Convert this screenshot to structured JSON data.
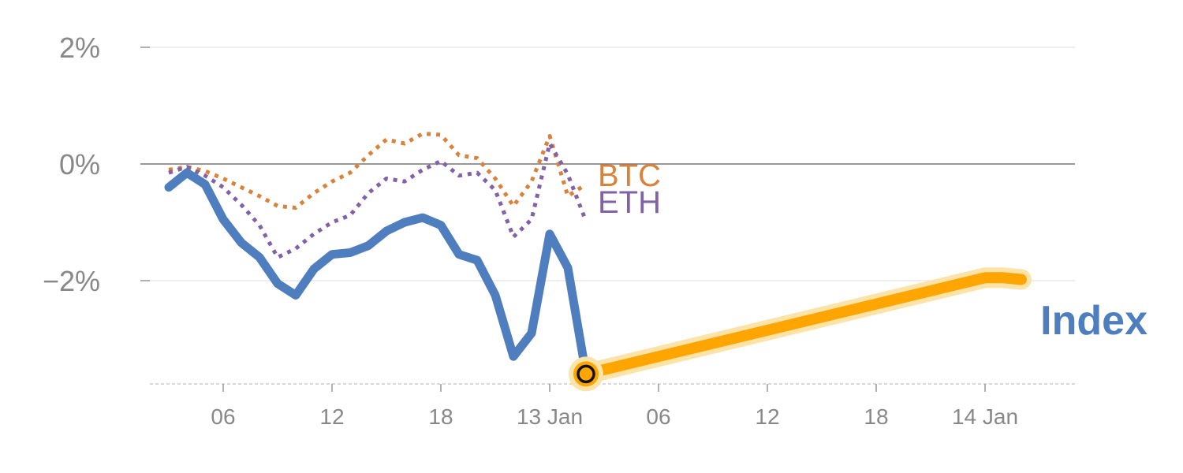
{
  "chart_data": {
    "type": "line",
    "title": "",
    "xlabel": "",
    "ylabel": "",
    "ylim": [
      -3.8,
      2.4
    ],
    "yticks": [
      {
        "value": 2,
        "label": "2%"
      },
      {
        "value": 0,
        "label": "0%"
      },
      {
        "value": -2,
        "label": "−2%"
      }
    ],
    "xticks": [
      {
        "h": 6,
        "label": "06"
      },
      {
        "h": 12,
        "label": "12"
      },
      {
        "h": 18,
        "label": "18"
      },
      {
        "h": 24,
        "label": "13 Jan"
      },
      {
        "h": 30,
        "label": "06"
      },
      {
        "h": 36,
        "label": "12"
      },
      {
        "h": 42,
        "label": "18"
      },
      {
        "h": 48,
        "label": "14 Jan"
      }
    ],
    "series": [
      {
        "name": "Index",
        "color": "#4f7ebf",
        "style": "solid",
        "h": [
          3,
          4,
          5,
          6,
          7,
          8,
          9,
          10,
          11,
          12,
          13,
          14,
          15,
          16,
          17,
          18,
          19,
          20,
          21,
          22,
          23,
          24,
          25,
          26
        ],
        "values": [
          -0.4,
          -0.15,
          -0.35,
          -0.95,
          -1.35,
          -1.6,
          -2.05,
          -2.25,
          -1.8,
          -1.55,
          -1.52,
          -1.4,
          -1.15,
          -1.0,
          -0.92,
          -1.05,
          -1.55,
          -1.65,
          -2.25,
          -3.3,
          -2.9,
          -1.2,
          -1.78,
          -3.6
        ]
      },
      {
        "name": "BTC",
        "color": "#d9823b",
        "style": "dotted",
        "h": [
          3,
          4,
          5,
          6,
          7,
          8,
          9,
          10,
          11,
          12,
          13,
          14,
          15,
          16,
          17,
          18,
          19,
          20,
          21,
          22,
          23,
          24,
          25,
          26
        ],
        "values": [
          -0.1,
          -0.05,
          -0.12,
          -0.25,
          -0.4,
          -0.55,
          -0.72,
          -0.75,
          -0.5,
          -0.3,
          -0.15,
          0.15,
          0.42,
          0.35,
          0.52,
          0.5,
          0.15,
          0.1,
          -0.25,
          -0.72,
          -0.3,
          0.48,
          -0.55,
          -0.35
        ]
      },
      {
        "name": "ETH",
        "color": "#8161a8",
        "style": "dotted",
        "h": [
          3,
          4,
          5,
          6,
          7,
          8,
          9,
          10,
          11,
          12,
          13,
          14,
          15,
          16,
          17,
          18,
          19,
          20,
          21,
          22,
          23,
          24,
          25,
          26
        ],
        "values": [
          -0.15,
          -0.05,
          -0.2,
          -0.4,
          -0.7,
          -1.05,
          -1.6,
          -1.45,
          -1.2,
          -1.0,
          -0.88,
          -0.5,
          -0.25,
          -0.3,
          -0.1,
          0.05,
          -0.2,
          -0.15,
          -0.45,
          -1.25,
          -0.95,
          0.35,
          -0.18,
          -0.98
        ]
      }
    ],
    "projection": {
      "color": "#ffa500",
      "h": [
        26,
        48,
        49,
        50
      ],
      "values": [
        -3.6,
        -1.95,
        -1.95,
        -1.98
      ]
    },
    "marker": {
      "h": 26,
      "value": -3.6
    },
    "labels": {
      "btc": "BTC",
      "eth": "ETH",
      "index": "Index"
    },
    "grid": true
  }
}
